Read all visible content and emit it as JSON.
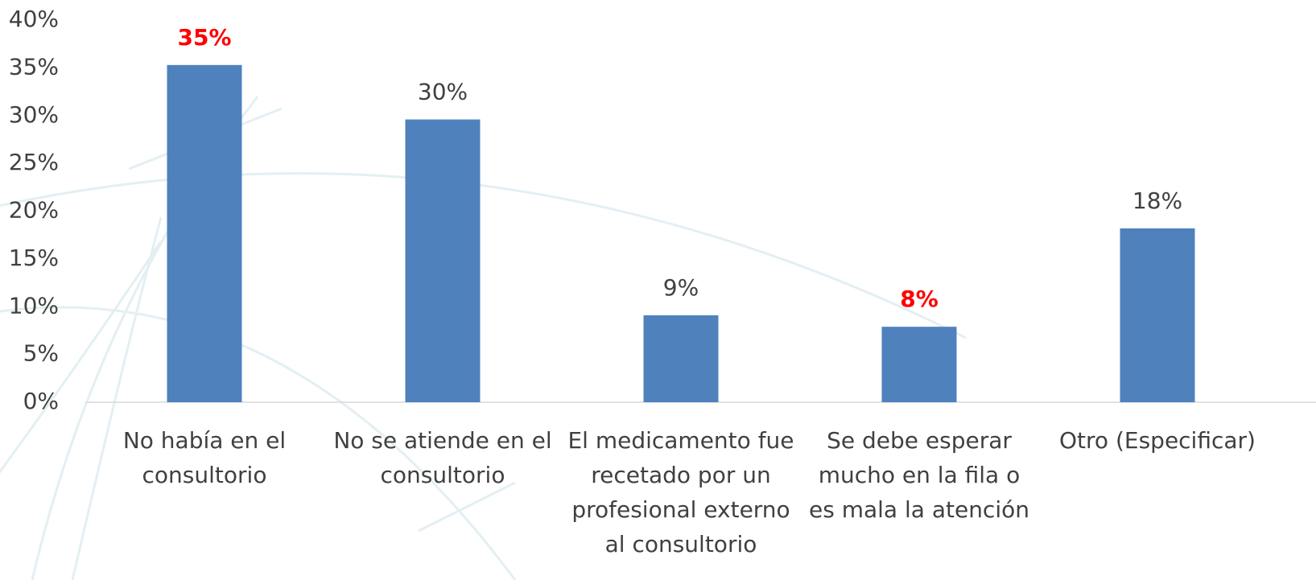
{
  "chart_data": {
    "type": "bar",
    "categories": [
      [
        "No había en el",
        "consultorio"
      ],
      [
        "No se atiende en el",
        "consultorio"
      ],
      [
        "El medicamento fue",
        "recetado por un",
        "profesional externo",
        "al consultorio"
      ],
      [
        "Se debe esperar",
        "mucho en la fila o",
        "es mala la atención"
      ],
      [
        "Otro (Especificar)"
      ]
    ],
    "values": [
      35.3,
      29.6,
      9.1,
      7.9,
      18.2
    ],
    "value_labels": [
      "35%",
      "30%",
      "9%",
      "8%",
      "18%"
    ],
    "value_label_colors": [
      "#ff0000",
      "#404040",
      "#404040",
      "#ff0000",
      "#404040"
    ],
    "value_label_bold": [
      true,
      false,
      false,
      true,
      false
    ],
    "color": "#4f81bd",
    "ylim": [
      0,
      40
    ],
    "yticks": [
      {
        "value": 0,
        "label": "0%"
      },
      {
        "value": 5,
        "label": "5%"
      },
      {
        "value": 10,
        "label": "10%"
      },
      {
        "value": 15,
        "label": "15%"
      },
      {
        "value": 20,
        "label": "20%"
      },
      {
        "value": 25,
        "label": "25%"
      },
      {
        "value": 30,
        "label": "30%"
      },
      {
        "value": 35,
        "label": "35%"
      },
      {
        "value": 40,
        "label": "40%"
      }
    ],
    "grid": false
  }
}
